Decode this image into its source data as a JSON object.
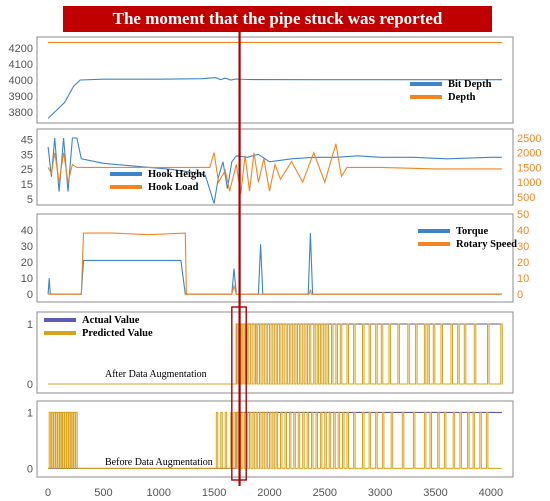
{
  "banner": {
    "text": "The moment that the pipe stuck was reported",
    "color": "#c00000"
  },
  "colors": {
    "blue": "#3d85c6",
    "orange": "#f28522",
    "gold": "#d9a21e",
    "purple": "#5e5bb5",
    "marker": "#b00000",
    "frame": "#8c8c8c"
  },
  "x_axis": {
    "range": [
      -100,
      4200
    ],
    "ticks": [
      0,
      500,
      1000,
      1500,
      2000,
      2500,
      3000,
      3500,
      4000
    ],
    "tick_labels": [
      "0",
      "500",
      "1000",
      "1500",
      "2000",
      "2500",
      "3000",
      "3500",
      "4000"
    ]
  },
  "stuck_marker": {
    "x": 1730,
    "window": [
      1660,
      1790
    ]
  },
  "chart_data": [
    {
      "type": "line",
      "panel": "depth",
      "ylim": [
        3750,
        4250
      ],
      "yticks": [
        3800,
        3900,
        4000,
        4100,
        4200
      ],
      "ytick_labels": [
        "3800",
        "3900",
        "4000",
        "4100",
        "4200"
      ],
      "legend": "right",
      "series": [
        {
          "name": "Bit Depth",
          "color": "#3d85c6",
          "points": [
            [
              0,
              3760
            ],
            [
              60,
              3800
            ],
            [
              150,
              3860
            ],
            [
              230,
              3960
            ],
            [
              290,
              4000
            ],
            [
              500,
              4005
            ],
            [
              1000,
              4005
            ],
            [
              1400,
              4008
            ],
            [
              1510,
              4015
            ],
            [
              1560,
              4002
            ],
            [
              1600,
              4012
            ],
            [
              1650,
              4000
            ],
            [
              1700,
              4006
            ],
            [
              1800,
              4003
            ],
            [
              2500,
              4002
            ],
            [
              3000,
              4002
            ],
            [
              4100,
              4002
            ]
          ]
        },
        {
          "name": "Depth",
          "color": "#f28522",
          "points": [
            [
              0,
              4235
            ],
            [
              4100,
              4235
            ]
          ]
        }
      ]
    },
    {
      "type": "line",
      "panel": "hook",
      "ylim": [
        3,
        50
      ],
      "yticks": [
        5,
        15,
        25,
        35,
        45
      ],
      "ytick_labels": [
        "5",
        "15",
        "25",
        "35",
        "45"
      ],
      "y2lim": [
        330,
        2700
      ],
      "y2ticks": [
        500,
        1000,
        1500,
        2000,
        2500
      ],
      "y2tick_labels": [
        "500",
        "1000",
        "1500",
        "2000",
        "2500"
      ],
      "legend": "left",
      "series": [
        {
          "name": "Hook Height",
          "color": "#3d85c6",
          "points": [
            [
              0,
              40
            ],
            [
              30,
              20
            ],
            [
              60,
              46
            ],
            [
              100,
              10
            ],
            [
              140,
              46
            ],
            [
              180,
              10
            ],
            [
              220,
              46
            ],
            [
              260,
              46
            ],
            [
              300,
              32
            ],
            [
              500,
              29
            ],
            [
              800,
              27
            ],
            [
              1100,
              25
            ],
            [
              1300,
              23
            ],
            [
              1420,
              21
            ],
            [
              1500,
              2
            ],
            [
              1540,
              20
            ],
            [
              1580,
              30
            ],
            [
              1620,
              12
            ],
            [
              1660,
              30
            ],
            [
              1700,
              34
            ],
            [
              1800,
              33
            ],
            [
              1900,
              35
            ],
            [
              2000,
              30
            ],
            [
              2200,
              32
            ],
            [
              2400,
              33
            ],
            [
              2600,
              33
            ],
            [
              2800,
              34
            ],
            [
              3000,
              33
            ],
            [
              3300,
              33
            ],
            [
              3600,
              32
            ],
            [
              4000,
              33
            ],
            [
              4100,
              33
            ]
          ]
        },
        {
          "name": "Hook Load",
          "color": "#f28522",
          "points": [
            [
              0,
              1500
            ],
            [
              30,
              1300
            ],
            [
              60,
              2000
            ],
            [
              100,
              1000
            ],
            [
              140,
              2000
            ],
            [
              180,
              1000
            ],
            [
              220,
              1600
            ],
            [
              260,
              1500
            ],
            [
              300,
              1500
            ],
            [
              500,
              1500
            ],
            [
              1000,
              1500
            ],
            [
              1400,
              1500
            ],
            [
              1460,
              1500
            ],
            [
              1500,
              2000
            ],
            [
              1540,
              1000
            ],
            [
              1600,
              1400
            ],
            [
              1640,
              700
            ],
            [
              1700,
              1600
            ],
            [
              1740,
              600
            ],
            [
              1780,
              1900
            ],
            [
              1820,
              700
            ],
            [
              1860,
              2000
            ],
            [
              1900,
              1000
            ],
            [
              1950,
              1800
            ],
            [
              2000,
              700
            ],
            [
              2050,
              1600
            ],
            [
              2100,
              1100
            ],
            [
              2200,
              1700
            ],
            [
              2300,
              1000
            ],
            [
              2400,
              2000
            ],
            [
              2500,
              1000
            ],
            [
              2600,
              2300
            ],
            [
              2650,
              1200
            ],
            [
              2700,
              1500
            ],
            [
              3000,
              1500
            ],
            [
              3500,
              1450
            ],
            [
              4000,
              1450
            ],
            [
              4100,
              1450
            ]
          ]
        }
      ]
    },
    {
      "type": "line",
      "panel": "torque",
      "ylim": [
        -3,
        48
      ],
      "yticks": [
        0,
        10,
        20,
        30,
        40
      ],
      "ytick_labels": [
        "0",
        "10",
        "20",
        "30",
        "40"
      ],
      "y2lim": [
        -3,
        48
      ],
      "y2ticks": [
        0,
        10,
        20,
        30,
        40,
        50
      ],
      "y2tick_labels": [
        "0",
        "10",
        "20",
        "30",
        "40",
        "50"
      ],
      "legend": "right",
      "series": [
        {
          "name": "Torque",
          "color": "#3d85c6",
          "points": [
            [
              0,
              0
            ],
            [
              10,
              10
            ],
            [
              20,
              0
            ],
            [
              300,
              0
            ],
            [
              320,
              21
            ],
            [
              500,
              21
            ],
            [
              800,
              21
            ],
            [
              1200,
              21
            ],
            [
              1240,
              0
            ],
            [
              1660,
              0
            ],
            [
              1680,
              16
            ],
            [
              1700,
              0
            ],
            [
              1900,
              0
            ],
            [
              1920,
              31
            ],
            [
              1940,
              0
            ],
            [
              2350,
              0
            ],
            [
              2370,
              38
            ],
            [
              2390,
              0
            ],
            [
              4100,
              0
            ]
          ]
        },
        {
          "name": "Rotary Speed",
          "color": "#f28522",
          "points": [
            [
              0,
              0
            ],
            [
              300,
              0
            ],
            [
              320,
              38
            ],
            [
              600,
              38
            ],
            [
              900,
              37
            ],
            [
              1240,
              38
            ],
            [
              1250,
              0
            ],
            [
              1660,
              0
            ],
            [
              1680,
              5
            ],
            [
              1700,
              0
            ],
            [
              2360,
              0
            ],
            [
              2370,
              3
            ],
            [
              2380,
              0
            ],
            [
              4100,
              0
            ]
          ]
        }
      ]
    },
    {
      "type": "line",
      "panel": "after-augmentation",
      "ylim": [
        -0.1,
        1.15
      ],
      "yticks": [
        0,
        1
      ],
      "ytick_labels": [
        "0",
        "1"
      ],
      "legend": "left",
      "annotation": "After Data Augmentation",
      "series": [
        {
          "name": "Actual Value",
          "color": "#5e5bb5",
          "points": [
            [
              0,
              0
            ],
            [
              1700,
              0
            ],
            [
              1700,
              1
            ],
            [
              4100,
              1
            ]
          ]
        },
        {
          "name": "Predicted Value",
          "color": "#d9a21e",
          "spikes": [
            1700,
            1715,
            1730,
            1755,
            1780,
            1800,
            1830,
            1860,
            1880,
            1910,
            1940,
            1970,
            2000,
            2030,
            2060,
            2090,
            2120,
            2150,
            2180,
            2210,
            2240,
            2270,
            2300,
            2330,
            2360,
            2400,
            2430,
            2460,
            2490,
            2520,
            2560,
            2600,
            2640,
            2700,
            2760,
            2840,
            2900,
            2960,
            3010,
            3080,
            3160,
            3250,
            3320,
            3400,
            3430,
            3480,
            3550,
            3640,
            3700,
            3760,
            3850,
            3970,
            4090
          ]
        }
      ]
    },
    {
      "type": "line",
      "panel": "before-augmentation",
      "ylim": [
        -0.1,
        1.15
      ],
      "yticks": [
        0,
        1
      ],
      "ytick_labels": [
        "0",
        "1"
      ],
      "annotation": "Before Data Augmentation",
      "series": [
        {
          "name": "Actual Value",
          "color": "#5e5bb5",
          "points": [
            [
              0,
              0
            ],
            [
              1700,
              0
            ],
            [
              1700,
              1
            ],
            [
              4100,
              1
            ]
          ]
        },
        {
          "name": "Predicted Value",
          "color": "#d9a21e",
          "spikes": [
            10,
            30,
            50,
            70,
            90,
            110,
            130,
            150,
            170,
            190,
            210,
            230,
            250,
            1520,
            1560,
            1600,
            1650,
            1680,
            1700,
            1730,
            1760,
            1790,
            1820,
            1850,
            1880,
            1910,
            1940,
            1970,
            2000,
            2030,
            2060,
            2100,
            2140,
            2180,
            2220,
            2260,
            2300,
            2340,
            2380,
            2420,
            2460,
            2500,
            2540,
            2580,
            2620,
            2660,
            2700,
            2760,
            2840,
            2900,
            2960,
            3020,
            3100,
            3200,
            3300,
            3400,
            3450,
            3520,
            3580,
            3660,
            3720,
            3790,
            3840,
            3900,
            3960
          ]
        }
      ]
    }
  ]
}
